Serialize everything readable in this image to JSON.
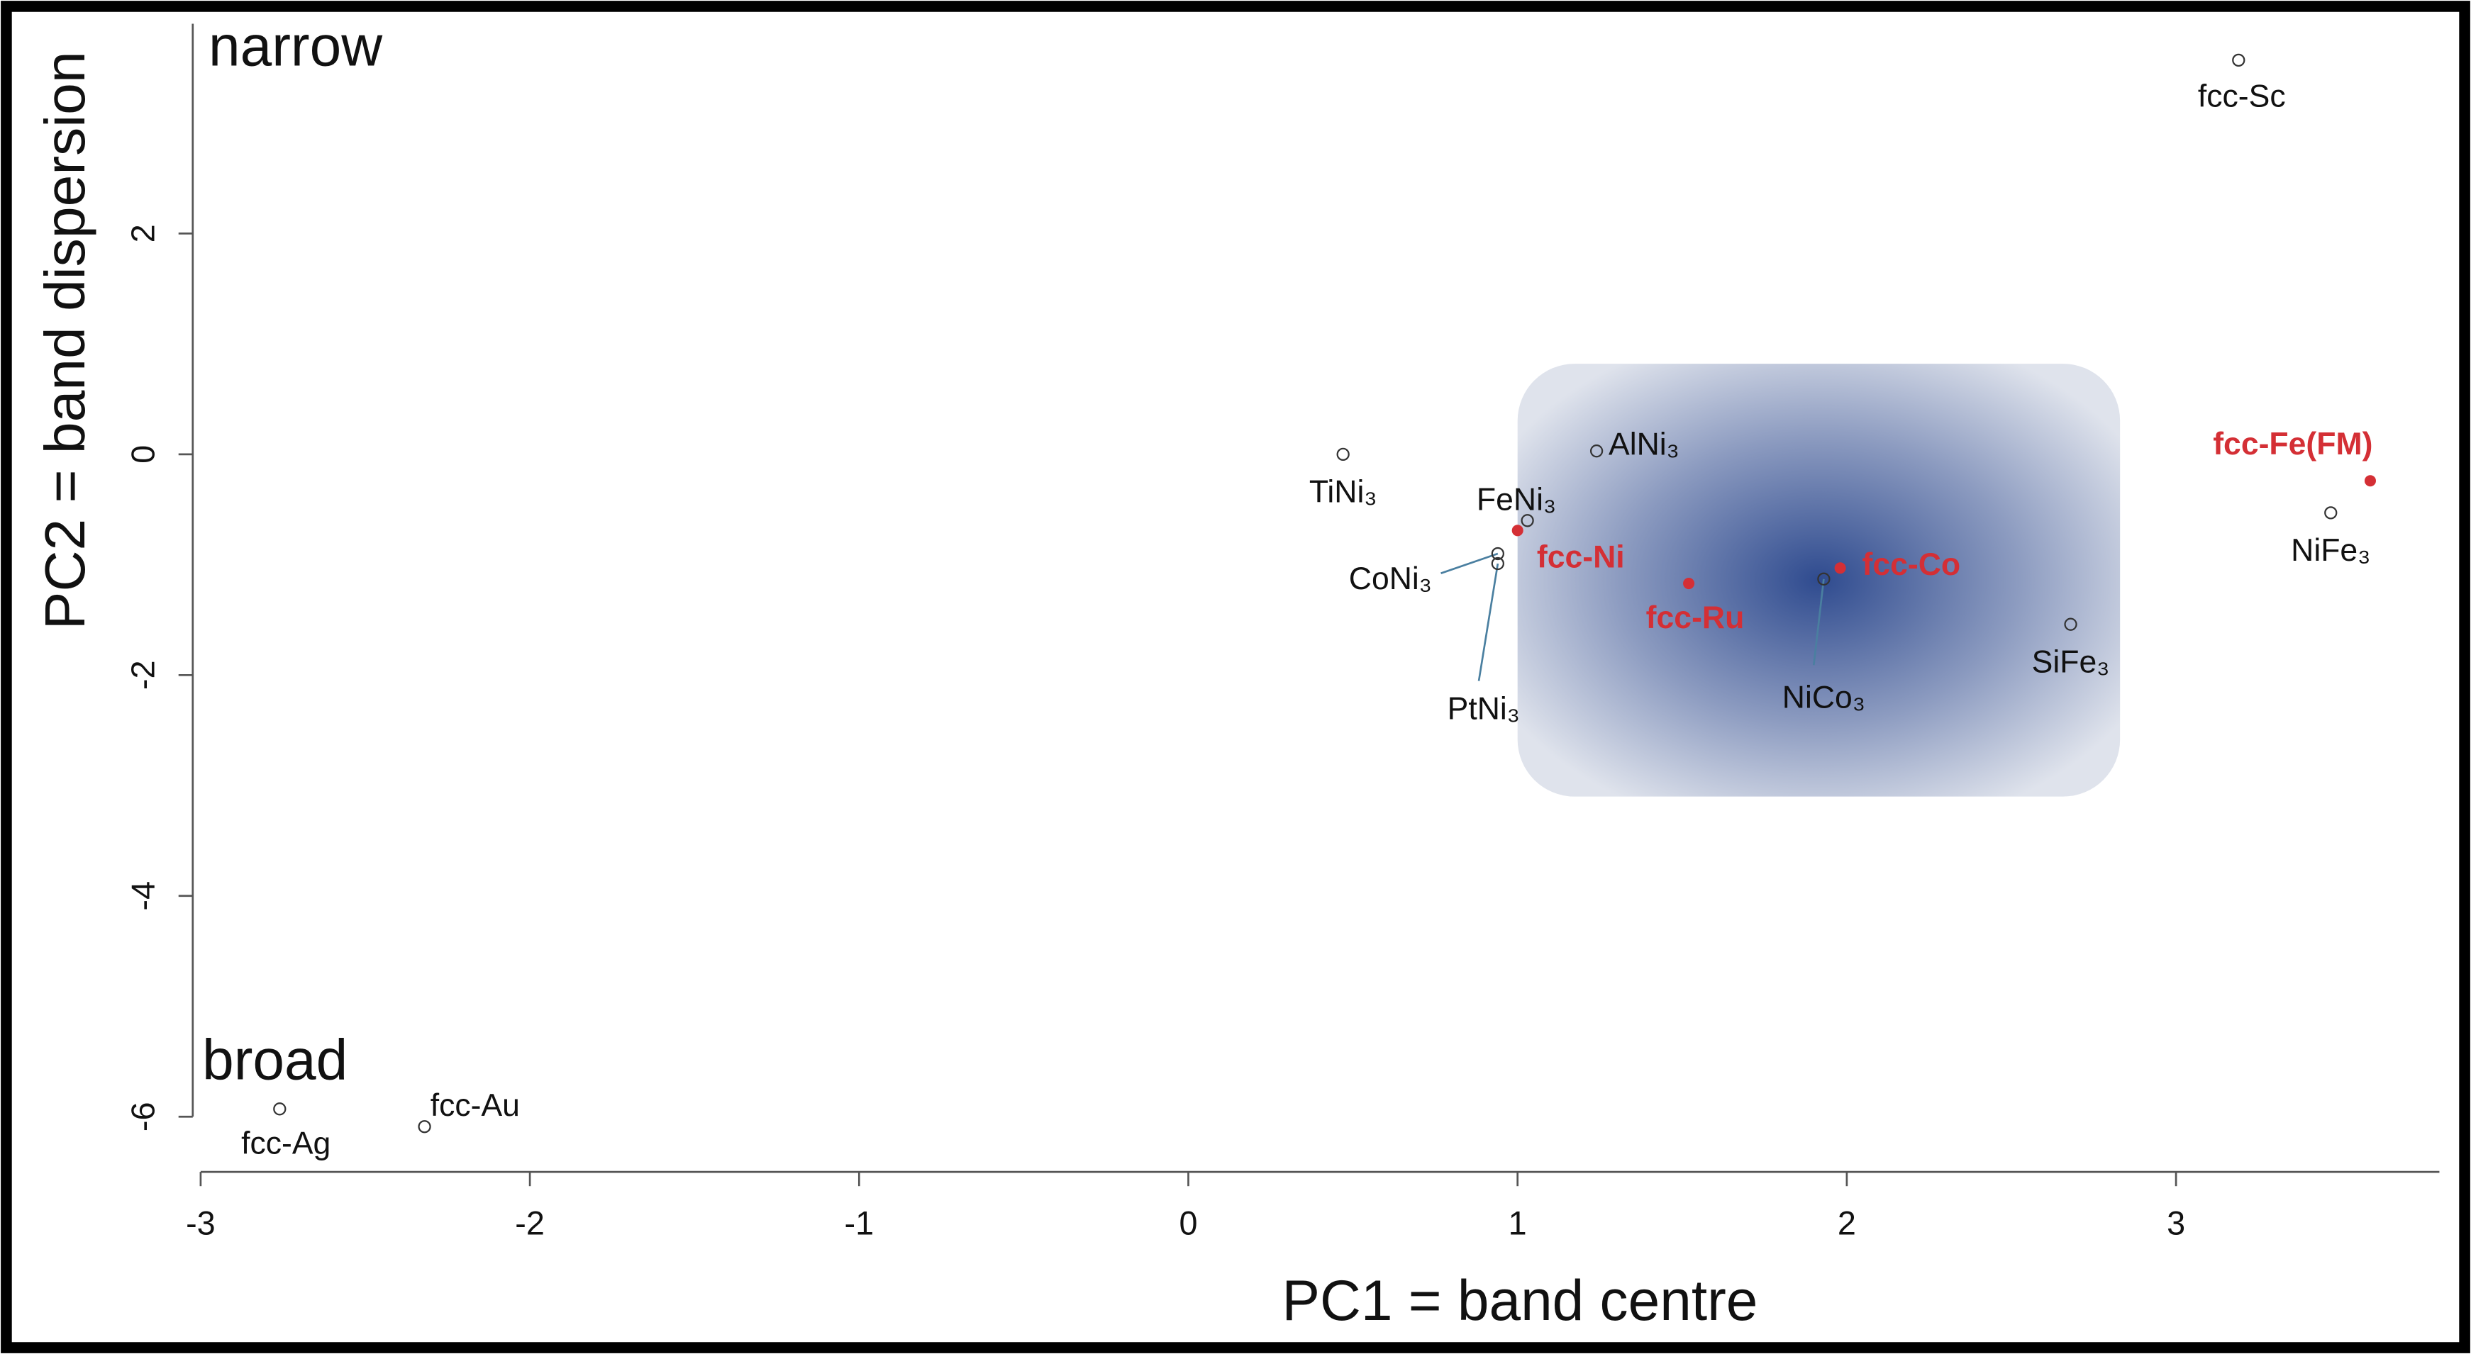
{
  "chart_data": {
    "type": "scatter",
    "x_label": "PC1 = band centre",
    "y_label": "PC2 = band dispersion",
    "annotations": [
      "narrow",
      "broad"
    ],
    "labels": [
      "fcc-Sc",
      "TiNi₃",
      "AlNi₃",
      "FeNi₃",
      "fcc-Ni",
      "CoNi₃",
      "PtNi₃",
      "fcc-Ru",
      "fcc-Co",
      "NiCo₃",
      "SiFe₃",
      "fcc-Fe(FM)",
      "NiFe₃",
      "fcc-Ag",
      "fcc-Au"
    ],
    "x": [
      3.19,
      0.47,
      1.24,
      1.03,
      1.0,
      0.94,
      0.94,
      1.52,
      1.98,
      1.93,
      2.68,
      3.59,
      3.47,
      -2.76,
      -2.32
    ],
    "y": [
      3.57,
      0.0,
      0.03,
      -0.6,
      -0.69,
      -0.9,
      -0.99,
      -1.17,
      -1.03,
      -1.13,
      -1.54,
      -0.24,
      -0.53,
      -5.93,
      -6.09
    ],
    "highlighted": [
      false,
      false,
      false,
      false,
      true,
      false,
      false,
      true,
      true,
      false,
      false,
      true,
      false,
      false,
      false
    ],
    "color": "#333333",
    "highlight_color": "#d42f35",
    "highlight_region": {
      "xlim": [
        1.0,
        2.83
      ],
      "ylim": [
        -3.1,
        0.82
      ]
    },
    "xlim": [
      -3.0,
      3.8
    ],
    "ylim": [
      -6.5,
      3.9
    ],
    "xticks": [
      -3,
      -2,
      -1,
      0,
      1,
      2,
      3
    ],
    "yticks": [
      -6,
      -4,
      -2,
      0,
      2
    ]
  }
}
